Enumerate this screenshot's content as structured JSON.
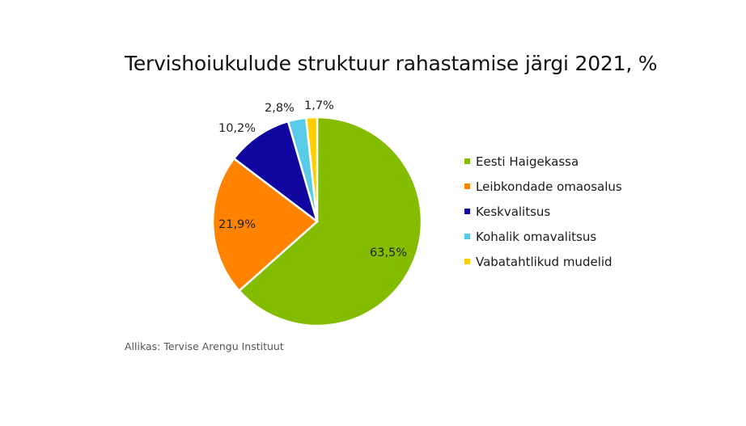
{
  "chart_data": {
    "type": "pie",
    "title": "Tervishoiukulude struktuur rahastamise järgi 2021, %",
    "categories": [
      "Eesti Haigekassa",
      "Leibkondade omaosalus",
      "Keskvalitsus",
      "Kohalik omavalitsus",
      "Vabatahtlikud mudelid"
    ],
    "values": [
      63.5,
      21.9,
      10.2,
      2.8,
      1.7
    ],
    "data_labels": [
      "63,5%",
      "21,9%",
      "10,2%",
      "2,8%",
      "1,7%"
    ],
    "colors": [
      "#84bd00",
      "#ff8200",
      "#10069f",
      "#59cbe8",
      "#ffcd00"
    ],
    "start_angle": "12 o'clock, clockwise",
    "legend_position": "right",
    "source": "Allikas: Tervise Arengu Instituut"
  },
  "header": {
    "title": "Tervishoiukulude struktuur rahastamise järgi 2021, %"
  },
  "labels": {
    "haigekassa": "63,5%",
    "leibkonnad": "21,9%",
    "keskvalitsus": "10,2%",
    "kov": "2,8%",
    "vabatahtlik": "1,7%"
  },
  "legend": {
    "items": [
      {
        "label": "Eesti Haigekassa",
        "color": "#84bd00"
      },
      {
        "label": "Leibkondade omaosalus",
        "color": "#ff8200"
      },
      {
        "label": "Keskvalitsus",
        "color": "#10069f"
      },
      {
        "label": "Kohalik omavalitsus",
        "color": "#59cbe8"
      },
      {
        "label": "Vabatahtlikud mudelid",
        "color": "#ffcd00"
      }
    ]
  },
  "footer": {
    "source": "Allikas: Tervise Arengu Instituut"
  }
}
